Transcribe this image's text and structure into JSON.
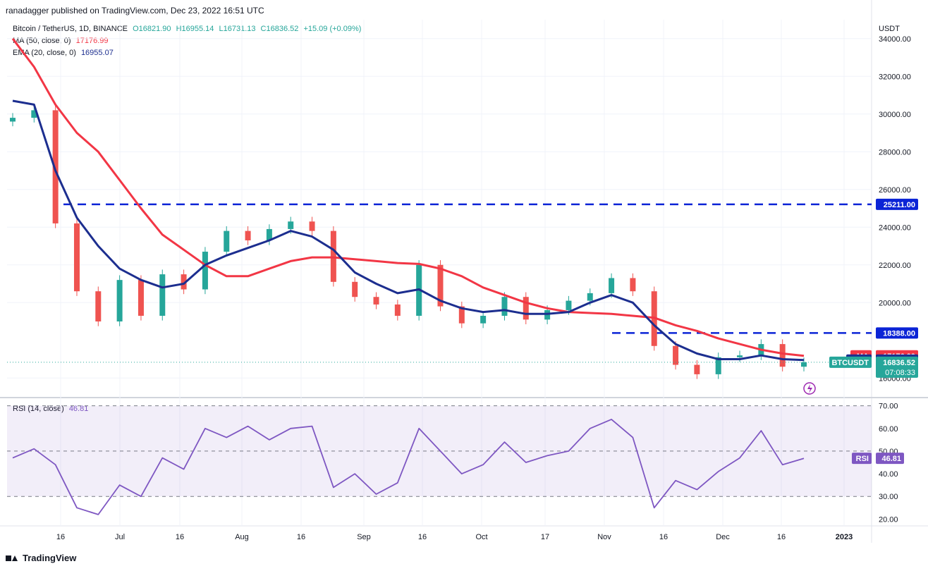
{
  "header": {
    "publisher": "ranadagger published on TradingView.com, Dec 23, 2022 16:51 UTC"
  },
  "symbol_line": {
    "name": "Bitcoin / TetherUS, 1D, BINANCE",
    "o": "O16821.90",
    "h": "H16955.14",
    "l": "L16731.13",
    "c": "C16836.52",
    "chg": "+15.09 (+0.09%)"
  },
  "ma_line": {
    "label": "MA (50, close, 0)",
    "value": "17176.99"
  },
  "ema_line": {
    "label": "EMA (20, close, 0)",
    "value": "16955.07"
  },
  "rsi_line": {
    "label": "RSI (14, close)",
    "value": "46.81"
  },
  "axis": {
    "currency": "USDT",
    "price_ticks": [
      "34000.00",
      "32000.00",
      "30000.00",
      "28000.00",
      "26000.00",
      "24000.00",
      "22000.00",
      "20000.00",
      "16000.00"
    ],
    "rsi_ticks": [
      "70.00",
      "60.00",
      "50.00",
      "40.00",
      "30.00",
      "20.00"
    ],
    "x_ticks": [
      "16",
      "Jul",
      "16",
      "Aug",
      "16",
      "Sep",
      "16",
      "Oct",
      "17",
      "Nov",
      "16",
      "Dec",
      "16",
      "2023"
    ]
  },
  "price_tags": {
    "resistance_high": "25211.00",
    "resistance_low": "18388.00",
    "ma_name": "MA",
    "ma_value": "17176.99",
    "ema_name": "EMA",
    "ema_value": "16955.07",
    "symbol": "BTCUSDT",
    "last": "16836.52",
    "countdown": "07:08:33",
    "rsi_name": "RSI",
    "rsi_value": "46.81"
  },
  "footer": {
    "brand": "TradingView"
  },
  "colors": {
    "up": "#26a69a",
    "down": "#ef5350",
    "ma": "#f23645",
    "ema": "#1c2e8f",
    "rsi": "#7e57c2",
    "level": "#0b24d6"
  },
  "chart_data": [
    {
      "type": "candlestick",
      "title": "Bitcoin / TetherUS, 1D, BINANCE",
      "ylabel": "USDT",
      "ylim": [
        15000,
        35000
      ],
      "levels": [
        25211,
        18388
      ],
      "x": [
        "Jun 3",
        "Jun 10",
        "Jun 13",
        "Jun 16",
        "Jun 18",
        "Jun 24",
        "Jul 1",
        "Jul 8",
        "Jul 16",
        "Jul 22",
        "Jul 29",
        "Aug 1",
        "Aug 8",
        "Aug 14",
        "Aug 16",
        "Aug 20",
        "Aug 26",
        "Sep 1",
        "Sep 7",
        "Sep 11",
        "Sep 16",
        "Sep 22",
        "Oct 1",
        "Oct 5",
        "Oct 12",
        "Oct 17",
        "Oct 25",
        "Nov 1",
        "Nov 5",
        "Nov 8",
        "Nov 9",
        "Nov 16",
        "Nov 21",
        "Nov 30",
        "Dec 8",
        "Dec 14",
        "Dec 16",
        "Dec 22"
      ],
      "series": [
        {
          "name": "close",
          "values": [
            29800,
            30200,
            24200,
            20600,
            19000,
            21200,
            19300,
            21500,
            20700,
            22700,
            23800,
            23300,
            23900,
            24300,
            23800,
            21100,
            20300,
            19900,
            19300,
            22000,
            19800,
            18900,
            19300,
            20300,
            19100,
            19600,
            20100,
            20500,
            21300,
            20600,
            17700,
            16700,
            16200,
            17100,
            17200,
            17800,
            16600,
            16836
          ]
        },
        {
          "name": "MA",
          "values": [
            34000,
            32500,
            30500,
            29000,
            28000,
            26500,
            25000,
            23600,
            22800,
            22000,
            21400,
            21400,
            21800,
            22200,
            22400,
            22400,
            22300,
            22200,
            22100,
            22050,
            21800,
            21400,
            20800,
            20400,
            20000,
            19700,
            19500,
            19450,
            19400,
            19300,
            19200,
            18800,
            18500,
            18100,
            17800,
            17500,
            17300,
            17177
          ]
        },
        {
          "name": "EMA",
          "values": [
            30700,
            30500,
            27000,
            24500,
            23000,
            21800,
            21200,
            20800,
            21000,
            22000,
            22500,
            22900,
            23300,
            23800,
            23500,
            22800,
            21600,
            21000,
            20500,
            20700,
            20100,
            19700,
            19500,
            19600,
            19400,
            19400,
            19500,
            20000,
            20400,
            20000,
            18800,
            17800,
            17300,
            17000,
            17000,
            17200,
            17000,
            16955
          ]
        }
      ]
    },
    {
      "type": "line",
      "title": "RSI (14, close)",
      "ylim": [
        17,
        73
      ],
      "levels": [
        70,
        50,
        30
      ],
      "x": [
        "Jun 3",
        "Jun 10",
        "Jun 13",
        "Jun 16",
        "Jun 18",
        "Jun 24",
        "Jul 1",
        "Jul 8",
        "Jul 16",
        "Jul 22",
        "Jul 29",
        "Aug 1",
        "Aug 8",
        "Aug 14",
        "Aug 16",
        "Aug 20",
        "Aug 26",
        "Sep 1",
        "Sep 7",
        "Sep 11",
        "Sep 16",
        "Sep 22",
        "Oct 1",
        "Oct 5",
        "Oct 12",
        "Oct 17",
        "Oct 25",
        "Nov 1",
        "Nov 5",
        "Nov 8",
        "Nov 9",
        "Nov 16",
        "Nov 21",
        "Nov 30",
        "Dec 8",
        "Dec 14",
        "Dec 16",
        "Dec 22"
      ],
      "series": [
        {
          "name": "RSI",
          "values": [
            47,
            51,
            44,
            25,
            22,
            35,
            30,
            47,
            42,
            60,
            56,
            61,
            55,
            60,
            61,
            34,
            40,
            31,
            36,
            60,
            50,
            40,
            44,
            54,
            45,
            48,
            50,
            60,
            64,
            56,
            25,
            37,
            33,
            41,
            47,
            59,
            44,
            46.81
          ]
        }
      ]
    }
  ]
}
